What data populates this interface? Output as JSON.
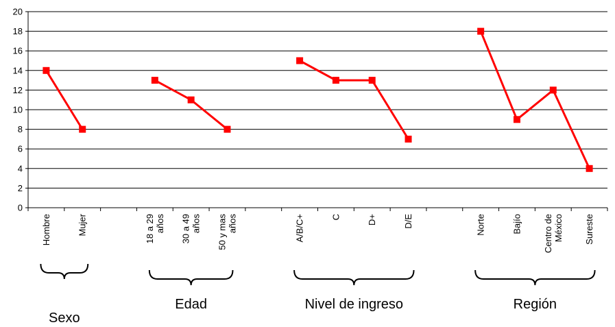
{
  "chart_data": {
    "type": "line",
    "title": "",
    "xlabel": "",
    "ylabel": "",
    "ylim": [
      0,
      20
    ],
    "yticks": [
      0,
      2,
      4,
      6,
      8,
      10,
      12,
      14,
      16,
      18,
      20
    ],
    "grid": "horizontal",
    "line_color": "#ff0000",
    "marker_color": "#ff0000",
    "groups": [
      {
        "name": "Sexo",
        "categories": [
          [
            "Hombre"
          ],
          [
            "Mujer"
          ]
        ],
        "values": [
          14,
          8
        ]
      },
      {
        "name": "Edad",
        "categories": [
          [
            "18 a 29",
            "años"
          ],
          [
            "30 a 49",
            "años"
          ],
          [
            "50 y mas",
            "años"
          ]
        ],
        "values": [
          13,
          11,
          8
        ]
      },
      {
        "name": "Nivel de ingreso",
        "categories": [
          [
            "A/B/C+"
          ],
          [
            "C"
          ],
          [
            "D+"
          ],
          [
            "D/E"
          ]
        ],
        "values": [
          15,
          13,
          13,
          7
        ]
      },
      {
        "name": "Región",
        "categories": [
          [
            "Norte"
          ],
          [
            "Bajío"
          ],
          [
            "Centro de",
            "México"
          ],
          [
            "Sureste"
          ]
        ],
        "values": [
          18,
          9,
          12,
          4
        ]
      }
    ]
  }
}
